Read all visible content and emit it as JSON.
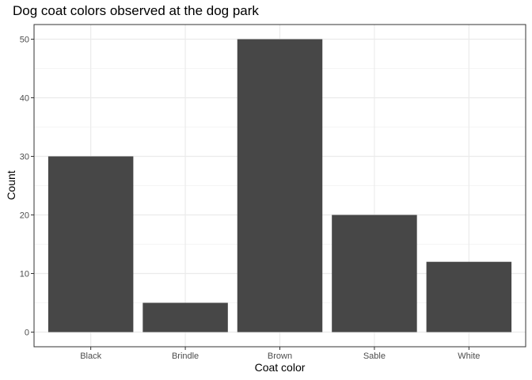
{
  "chart_data": {
    "type": "bar",
    "title": "Dog coat colors observed at the dog park",
    "xlabel": "Coat color",
    "ylabel": "Count",
    "categories": [
      "Black",
      "Brindle",
      "Brown",
      "Sable",
      "White"
    ],
    "values": [
      30,
      5,
      50,
      20,
      12
    ],
    "ylim": [
      0,
      52.5
    ],
    "yticks": [
      0,
      10,
      20,
      30,
      40,
      50
    ],
    "grid": true,
    "theme": "bw",
    "bar_color": "#474747",
    "grid_color": "#ebebeb",
    "panel_border_color": "#333333"
  }
}
